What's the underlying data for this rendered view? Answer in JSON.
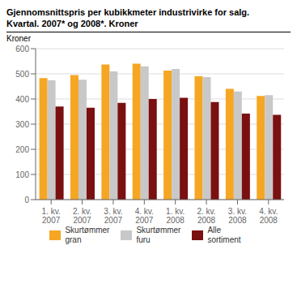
{
  "chart_data": {
    "type": "bar",
    "title": "Gjennomsnittspris per kubikkmeter industrivirke for salg.",
    "subtitle": "Kvartal. 2007* og 2008*. Kroner",
    "ylabel": "Kroner",
    "categories": [
      "1. kv.\n2007",
      "2. kv.\n2007",
      "3. kv.\n2007",
      "4. kv.\n2007",
      "1. kv.\n2008",
      "2. kv.\n2008",
      "3. kv.\n2008",
      "4. kv.\n2008"
    ],
    "series": [
      {
        "name": "Skurtømmer\ngran",
        "color": "#F5A623",
        "values": [
          483,
          495,
          537,
          540,
          513,
          490,
          440,
          412
        ]
      },
      {
        "name": "Skurtømmer\nfuru",
        "color": "#C8C8C8",
        "values": [
          474,
          477,
          510,
          530,
          519,
          487,
          430,
          415
        ]
      },
      {
        "name": "Alle\nsortiment",
        "color": "#7B1010",
        "values": [
          370,
          365,
          385,
          400,
          405,
          388,
          342,
          337
        ]
      }
    ],
    "ylim": [
      0,
      600
    ],
    "yticks": [
      0,
      100,
      200,
      300,
      400,
      500,
      600
    ],
    "grid": true,
    "legend": "bottom"
  }
}
